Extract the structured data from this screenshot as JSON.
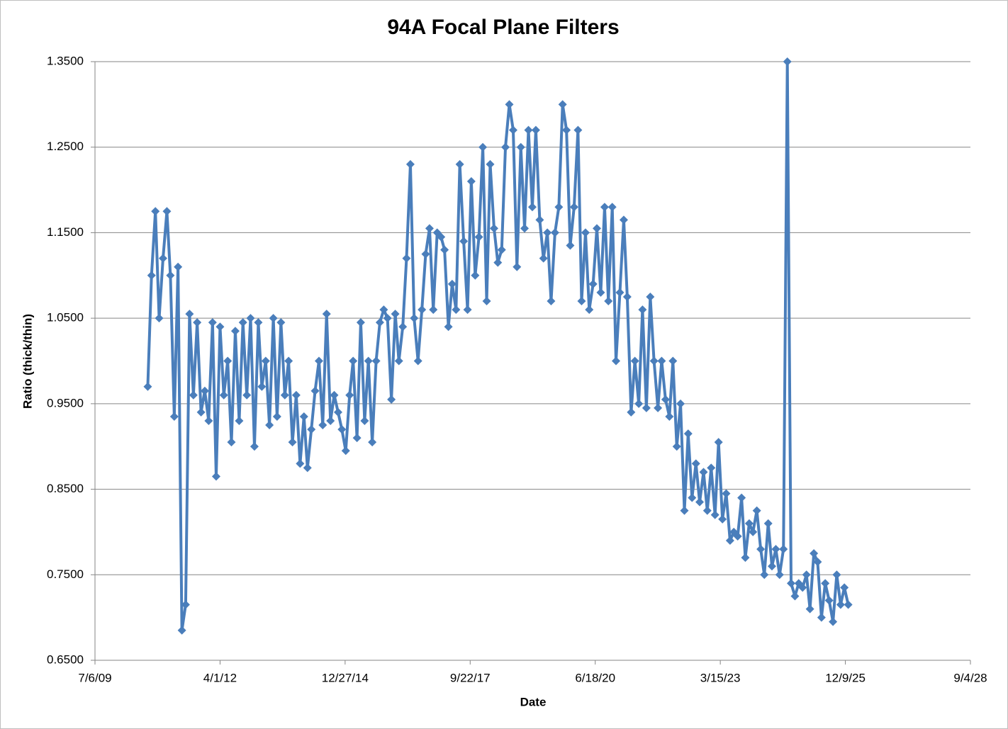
{
  "chart_data": {
    "type": "line",
    "title": "94A Focal Plane Filters",
    "x_label": "Date",
    "y_label": "Ratio (thick/thin)",
    "color": "#4a7ebb",
    "grid": true,
    "xlim": [
      "7/6/09",
      "9/4/28"
    ],
    "xticks": [
      "7/6/09",
      "4/1/12",
      "12/27/14",
      "9/22/17",
      "6/18/20",
      "3/15/23",
      "12/9/25",
      "9/4/28"
    ],
    "ylim": [
      0.65,
      1.35
    ],
    "yticks": [
      {
        "value": 0.65,
        "label": "0.6500"
      },
      {
        "value": 0.75,
        "label": "0.7500"
      },
      {
        "value": 0.85,
        "label": "0.8500"
      },
      {
        "value": 0.95,
        "label": "0.9500"
      },
      {
        "value": 1.05,
        "label": "1.0500"
      },
      {
        "value": 1.15,
        "label": "1.1500"
      },
      {
        "value": 1.25,
        "label": "1.2500"
      },
      {
        "value": 1.35,
        "label": "1.3500"
      }
    ],
    "x": [
      "9/1/10",
      "10/1/10",
      "11/1/10",
      "12/1/10",
      "1/1/11",
      "2/1/11",
      "3/1/11",
      "4/1/11",
      "5/1/11",
      "6/1/11",
      "7/1/11",
      "8/1/11",
      "9/1/11",
      "10/1/11",
      "11/1/11",
      "12/1/11",
      "1/1/12",
      "2/1/12",
      "3/1/12",
      "4/1/12",
      "5/1/12",
      "6/1/12",
      "7/1/12",
      "8/1/12",
      "9/1/12",
      "10/1/12",
      "11/1/12",
      "12/1/12",
      "1/1/13",
      "2/1/13",
      "3/1/13",
      "4/1/13",
      "5/1/13",
      "6/1/13",
      "7/1/13",
      "8/1/13",
      "9/1/13",
      "10/1/13",
      "11/1/13",
      "12/1/13",
      "1/1/14",
      "2/1/14",
      "3/1/14",
      "4/1/14",
      "5/1/14",
      "6/1/14",
      "7/1/14",
      "8/1/14",
      "9/1/14",
      "10/1/14",
      "11/1/14",
      "12/1/14",
      "1/1/15",
      "2/1/15",
      "3/1/15",
      "4/1/15",
      "5/1/15",
      "6/1/15",
      "7/1/15",
      "8/1/15",
      "9/1/15",
      "10/1/15",
      "11/1/15",
      "12/1/15",
      "1/1/16",
      "2/1/16",
      "3/1/16",
      "4/1/16",
      "5/1/16",
      "6/1/16",
      "7/1/16",
      "8/1/16",
      "9/1/16",
      "10/1/16",
      "11/1/16",
      "12/1/16",
      "1/1/17",
      "2/1/17",
      "3/1/17",
      "4/1/17",
      "5/1/17",
      "6/1/17",
      "7/1/17",
      "8/1/17",
      "9/1/17",
      "10/1/17",
      "11/1/17",
      "12/1/17",
      "1/1/18",
      "2/1/18",
      "3/1/18",
      "4/1/18",
      "5/1/18",
      "6/1/18",
      "7/1/18",
      "8/1/18",
      "9/1/18",
      "10/1/18",
      "11/1/18",
      "12/1/18",
      "1/1/19",
      "2/1/19",
      "3/1/19",
      "4/1/19",
      "5/1/19",
      "6/1/19",
      "7/1/19",
      "8/1/19",
      "9/1/19",
      "10/1/19",
      "11/1/19",
      "12/1/19",
      "1/1/20",
      "2/1/20",
      "3/1/20",
      "4/1/20",
      "5/1/20",
      "6/1/20",
      "7/1/20",
      "8/1/20",
      "9/1/20",
      "10/1/20",
      "11/1/20",
      "12/1/20",
      "1/1/21",
      "2/1/21",
      "3/1/21",
      "4/1/21",
      "5/1/21",
      "6/1/21",
      "7/1/21",
      "8/1/21",
      "9/1/21",
      "10/1/21",
      "11/1/21",
      "12/1/21",
      "1/1/22",
      "2/1/22",
      "3/1/22",
      "4/1/22",
      "5/1/22",
      "6/1/22",
      "7/1/22",
      "8/1/22",
      "9/1/22",
      "10/1/22",
      "11/1/22",
      "12/1/22",
      "1/1/23",
      "2/1/23",
      "3/1/23",
      "4/1/23",
      "5/1/23",
      "6/1/23",
      "7/1/23",
      "8/1/23",
      "9/1/23",
      "10/1/23",
      "11/1/23",
      "12/1/23",
      "1/1/24",
      "2/1/24",
      "3/1/24",
      "4/1/24",
      "5/1/24",
      "6/1/24",
      "7/1/24",
      "8/1/24",
      "9/1/24",
      "10/1/24",
      "11/1/24",
      "12/1/24",
      "1/1/25",
      "2/1/25",
      "3/1/25",
      "4/1/25",
      "5/1/25",
      "6/1/25",
      "7/1/25",
      "8/1/25",
      "9/1/25",
      "10/1/25",
      "11/1/25",
      "12/1/25",
      "1/1/26"
    ],
    "values": [
      0.97,
      1.1,
      1.175,
      1.05,
      1.12,
      1.175,
      1.1,
      0.935,
      1.11,
      0.685,
      0.715,
      1.055,
      0.96,
      1.045,
      0.94,
      0.965,
      0.93,
      1.045,
      0.865,
      1.04,
      0.96,
      1.0,
      0.905,
      1.035,
      0.93,
      1.045,
      0.96,
      1.05,
      0.9,
      1.045,
      0.97,
      1.0,
      0.925,
      1.05,
      0.935,
      1.045,
      0.96,
      1.0,
      0.905,
      0.96,
      0.88,
      0.935,
      0.875,
      0.92,
      0.965,
      1.0,
      0.925,
      1.055,
      0.93,
      0.96,
      0.94,
      0.92,
      0.895,
      0.96,
      1.0,
      0.91,
      1.045,
      0.93,
      1.0,
      0.905,
      1.0,
      1.045,
      1.06,
      1.05,
      0.955,
      1.055,
      1.0,
      1.04,
      1.12,
      1.23,
      1.05,
      1.0,
      1.06,
      1.125,
      1.155,
      1.06,
      1.15,
      1.145,
      1.13,
      1.04,
      1.09,
      1.06,
      1.23,
      1.14,
      1.06,
      1.21,
      1.1,
      1.145,
      1.25,
      1.07,
      1.23,
      1.155,
      1.115,
      1.13,
      1.25,
      1.3,
      1.27,
      1.11,
      1.25,
      1.155,
      1.27,
      1.18,
      1.27,
      1.165,
      1.12,
      1.15,
      1.07,
      1.15,
      1.18,
      1.3,
      1.27,
      1.135,
      1.18,
      1.27,
      1.07,
      1.15,
      1.06,
      1.09,
      1.155,
      1.08,
      1.18,
      1.07,
      1.18,
      1.0,
      1.08,
      1.165,
      1.075,
      0.94,
      1.0,
      0.95,
      1.06,
      0.945,
      1.075,
      1.0,
      0.945,
      1.0,
      0.955,
      0.935,
      1.0,
      0.9,
      0.95,
      0.825,
      0.915,
      0.84,
      0.88,
      0.835,
      0.87,
      0.825,
      0.875,
      0.82,
      0.905,
      0.815,
      0.845,
      0.79,
      0.8,
      0.795,
      0.84,
      0.77,
      0.81,
      0.8,
      0.825,
      0.78,
      0.75,
      0.81,
      0.76,
      0.78,
      0.75,
      0.78,
      1.35,
      0.74,
      0.725,
      0.74,
      0.735,
      0.75,
      0.71,
      0.775,
      0.765,
      0.7,
      0.74,
      0.72,
      0.695,
      0.75,
      0.715,
      0.735,
      0.715
    ]
  }
}
